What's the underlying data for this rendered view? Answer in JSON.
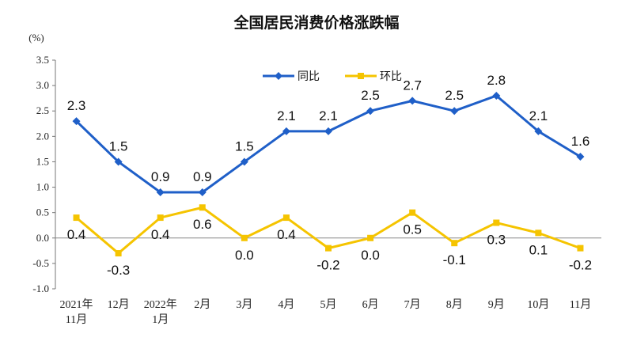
{
  "chart_data": {
    "type": "line",
    "title": "全国居民消费价格涨跌幅",
    "ylabel": "(%)",
    "ylim": [
      -1.0,
      3.5
    ],
    "yticks": [
      "3.5",
      "3.0",
      "2.5",
      "2.0",
      "1.5",
      "1.0",
      "0.5",
      "0.0",
      "-0.5",
      "-1.0"
    ],
    "ytick_values": [
      3.5,
      3.0,
      2.5,
      2.0,
      1.5,
      1.0,
      0.5,
      0.0,
      -0.5,
      -1.0
    ],
    "categories": [
      [
        "2021年",
        "11月"
      ],
      [
        "12月"
      ],
      [
        "2022年",
        "1月"
      ],
      [
        "2月"
      ],
      [
        "3月"
      ],
      [
        "4月"
      ],
      [
        "5月"
      ],
      [
        "6月"
      ],
      [
        "7月"
      ],
      [
        "8月"
      ],
      [
        "9月"
      ],
      [
        "10月"
      ],
      [
        "11月"
      ]
    ],
    "legend_position": "top-center",
    "series": [
      {
        "name": "同比",
        "color": "#1F5FC8",
        "marker": "diamond",
        "values": [
          2.3,
          1.5,
          0.9,
          0.9,
          1.5,
          2.1,
          2.1,
          2.5,
          2.7,
          2.5,
          2.8,
          2.1,
          1.6
        ],
        "labels": [
          "2.3",
          "1.5",
          "0.9",
          "0.9",
          "1.5",
          "2.1",
          "2.1",
          "2.5",
          "2.7",
          "2.5",
          "2.8",
          "2.1",
          "1.6"
        ],
        "label_side": "above"
      },
      {
        "name": "环比",
        "color": "#F5C400",
        "marker": "square",
        "values": [
          0.4,
          -0.3,
          0.4,
          0.6,
          0.0,
          0.4,
          -0.2,
          0.0,
          0.5,
          -0.1,
          0.3,
          0.1,
          -0.2
        ],
        "labels": [
          "0.4",
          "-0.3",
          "0.4",
          "0.6",
          "0.0",
          "0.4",
          "-0.2",
          "0.0",
          "0.5",
          "-0.1",
          "0.3",
          "0.1",
          "-0.2"
        ],
        "label_side": "below"
      }
    ]
  }
}
